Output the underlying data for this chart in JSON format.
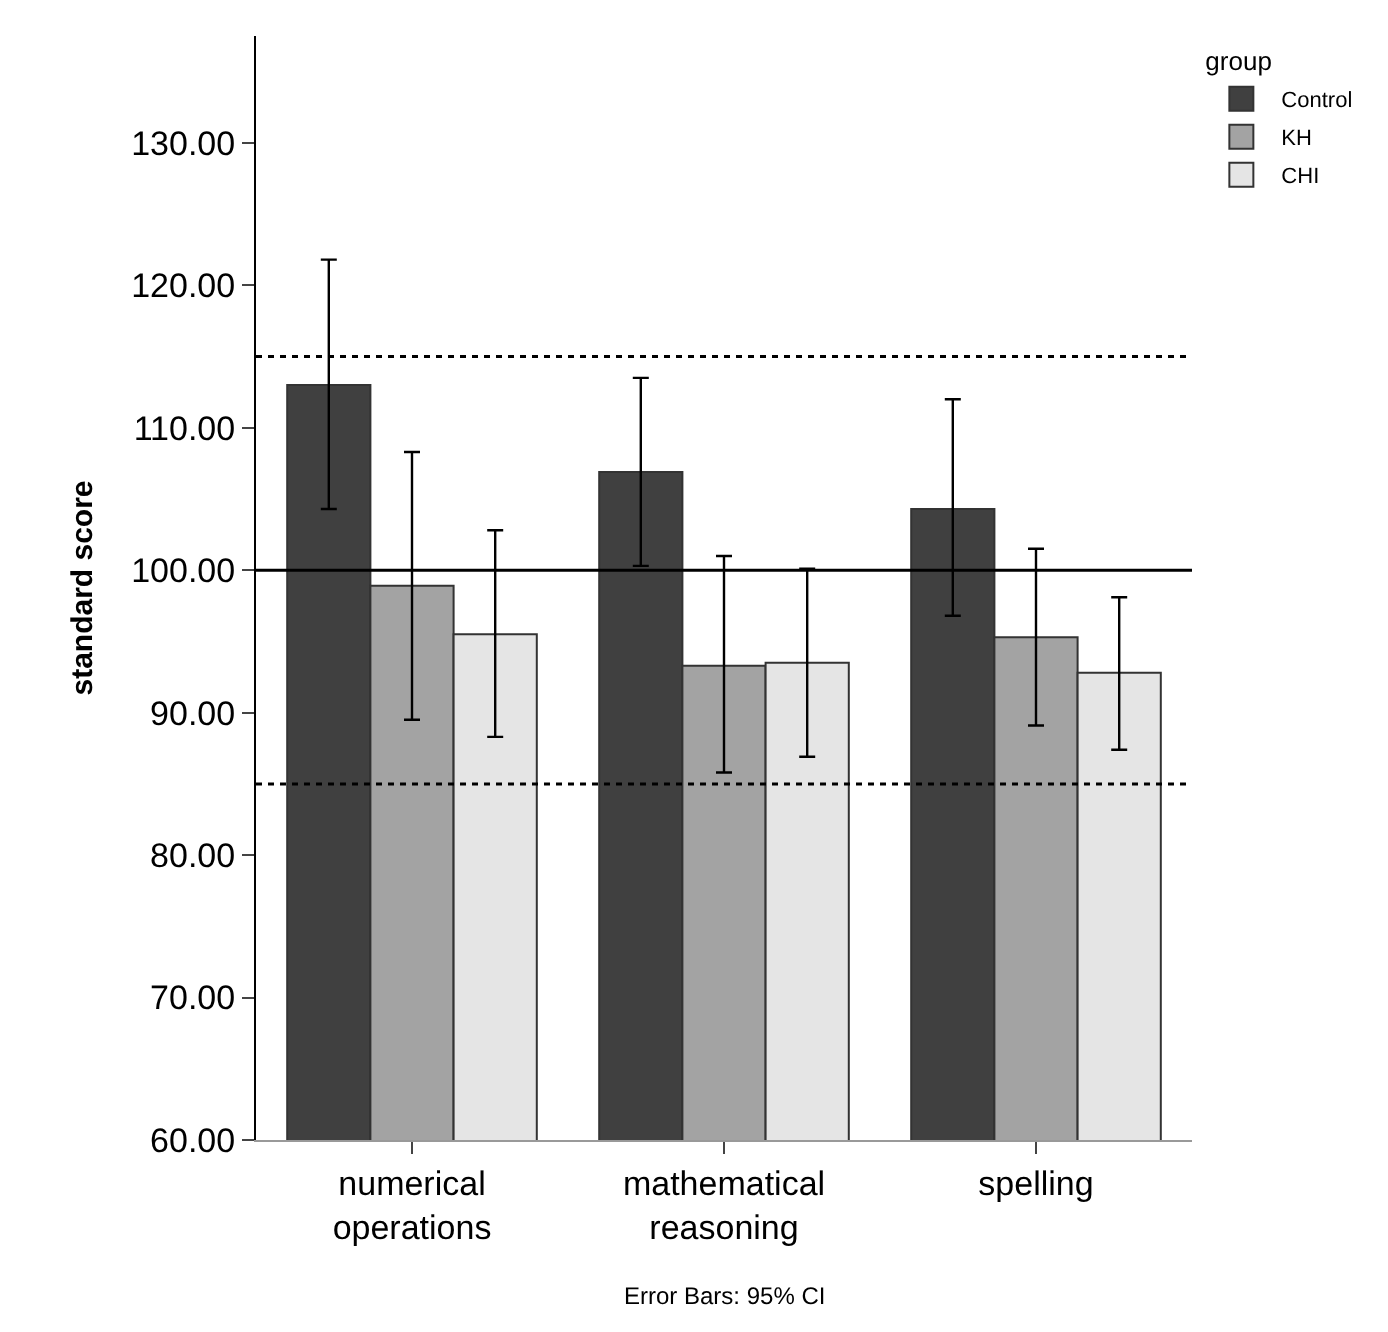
{
  "chart_data": {
    "type": "bar",
    "ylabel": "standard score",
    "legend_title": "group",
    "categories": [
      "numerical\noperations",
      "mathematical\nreasoning",
      "spelling"
    ],
    "series": [
      {
        "name": "Control",
        "color": "#404040",
        "values": [
          113.0,
          106.9,
          104.3
        ],
        "errors": [
          [
            104.3,
            121.8
          ],
          [
            100.3,
            113.5
          ],
          [
            96.8,
            112.0
          ]
        ]
      },
      {
        "name": "KH",
        "color": "#a3a3a3",
        "values": [
          98.9,
          93.3,
          95.3
        ],
        "errors": [
          [
            89.5,
            108.3
          ],
          [
            85.8,
            101.0
          ],
          [
            89.1,
            101.5
          ]
        ]
      },
      {
        "name": "CHI",
        "color": "#e5e5e5",
        "values": [
          95.5,
          93.5,
          92.8
        ],
        "errors": [
          [
            88.3,
            102.8
          ],
          [
            86.9,
            100.1
          ],
          [
            87.4,
            98.1
          ]
        ]
      }
    ],
    "ylim": [
      60,
      137.5
    ],
    "yticks": [
      {
        "value": 60,
        "label": "60.00"
      },
      {
        "value": 70,
        "label": "70.00"
      },
      {
        "value": 80,
        "label": "80.00"
      },
      {
        "value": 90,
        "label": "90.00"
      },
      {
        "value": 100,
        "label": "100.00"
      },
      {
        "value": 110,
        "label": "110.00"
      },
      {
        "value": 120,
        "label": "120.00"
      },
      {
        "value": 130,
        "label": "130.00"
      }
    ],
    "ref_lines": [
      {
        "axis": "y",
        "value": 100,
        "line_style": "solid",
        "color": "#000000"
      },
      {
        "axis": "y",
        "value": 115,
        "line_style": "dotted",
        "color": "#000000"
      },
      {
        "axis": "y",
        "value": 85,
        "line_style": "dotted",
        "color": "#000000"
      }
    ],
    "annotations": [
      "Error Bars: 95% CI"
    ],
    "legend": "top right"
  }
}
